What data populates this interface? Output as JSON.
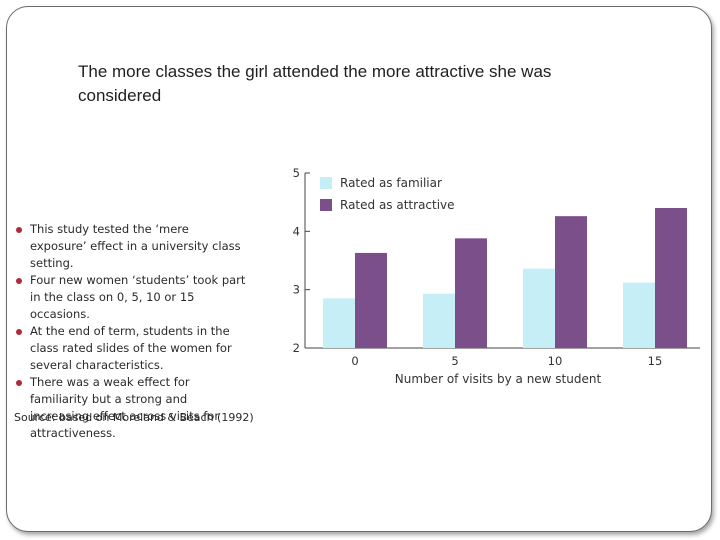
{
  "slide": {
    "title": "The more classes the girl attended the more attractive she was considered"
  },
  "bullets": [
    "This study tested the ‘mere exposure’ effect in a university class setting.",
    "Four new women ‘students’ took part in the class on 0, 5, 10 or 15 occasions.",
    "At the end of term, students in the class rated slides of the women for several characteristics.",
    "There was a weak effect for familiarity but a strong and increasing effect across visits for attractiveness."
  ],
  "source": "Source: based on Moreland & Beach (1992)",
  "colors": {
    "familiar": "#c5eef7",
    "attractive": "#7b4f8a",
    "bullet": "#b02a3a"
  },
  "chart_data": {
    "type": "bar",
    "categories": [
      "0",
      "5",
      "10",
      "15"
    ],
    "series": [
      {
        "name": "Rated as familiar",
        "values": [
          2.85,
          2.93,
          3.36,
          3.12
        ]
      },
      {
        "name": "Rated as attractive",
        "values": [
          3.63,
          3.88,
          4.26,
          4.4
        ]
      }
    ],
    "xlabel": "Number of visits by a new student",
    "ylabel": "",
    "ylim": [
      2,
      5
    ],
    "yticks": [
      "2",
      "3",
      "4",
      "5"
    ],
    "legend": "top-left"
  }
}
